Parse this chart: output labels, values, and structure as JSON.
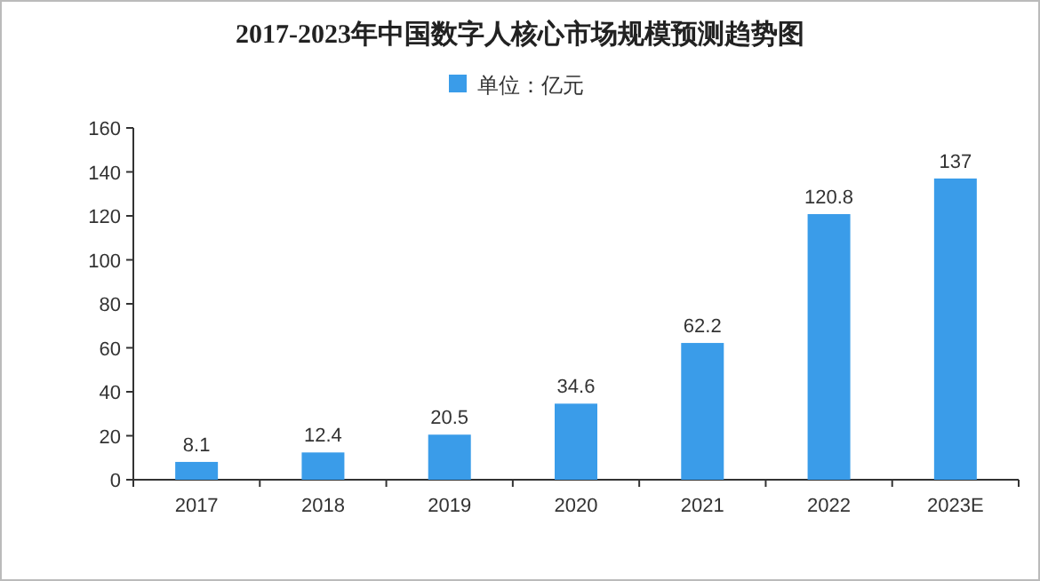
{
  "chart_data": {
    "type": "bar",
    "title": "2017-2023年中国数字人核心市场规模预测趋势图",
    "categories": [
      "2017",
      "2018",
      "2019",
      "2020",
      "2021",
      "2022",
      "2023E"
    ],
    "series": [
      {
        "name": "单位：亿元",
        "color": "#3a9ce9",
        "values": [
          8.1,
          12.4,
          20.5,
          34.6,
          62.2,
          120.8,
          137
        ]
      }
    ],
    "ylim": [
      0,
      160
    ],
    "yticks": [
      0,
      20,
      40,
      60,
      80,
      100,
      120,
      140,
      160
    ],
    "grid": false,
    "legend": "top",
    "data_labels": true
  }
}
